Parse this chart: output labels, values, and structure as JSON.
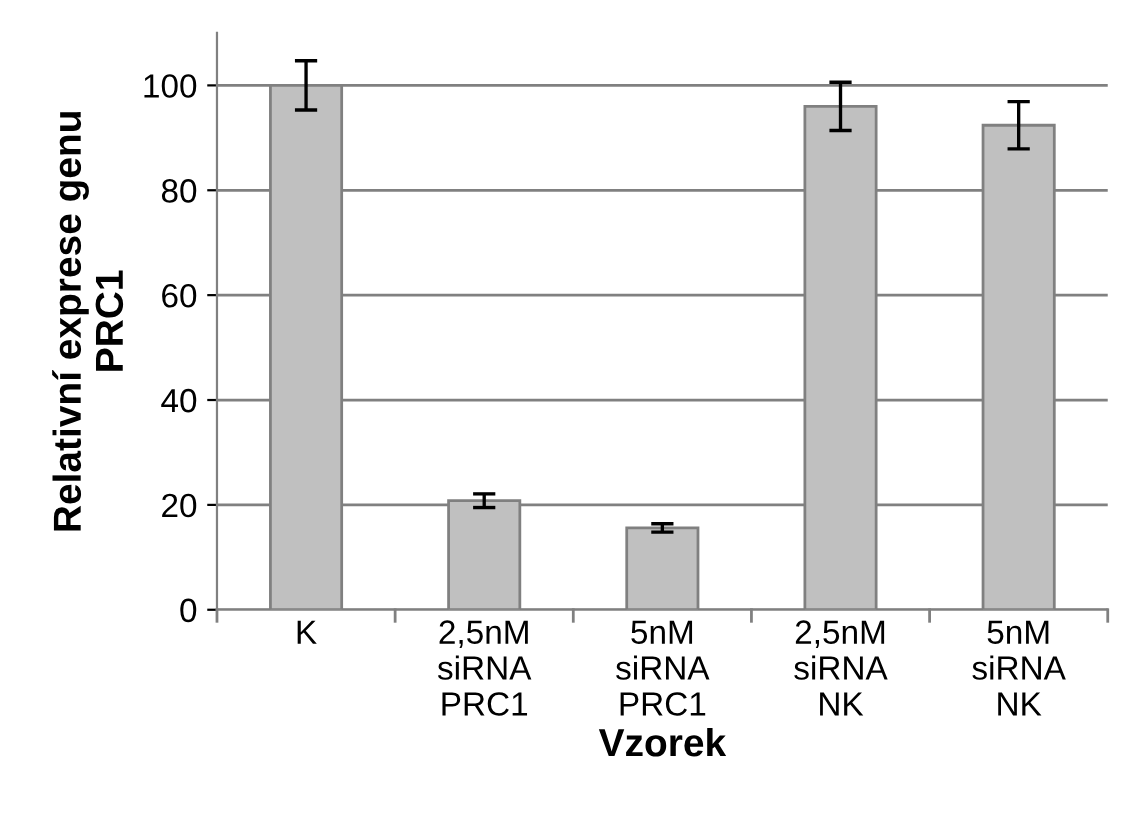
{
  "chart_data": {
    "type": "bar",
    "xlabel": "Vzorek",
    "ylabel": "Relativní exprese genu\nPRC1",
    "categories": [
      "K",
      "2,5nM\nsiRNA\nPRC1",
      "5nM\nsiRNA\nPRC1",
      "2,5nM\nsiRNA\nNK",
      "5nM\nsiRNA\nNK"
    ],
    "values": [
      100,
      20.8,
      15.6,
      96.0,
      92.4
    ],
    "errors": [
      4.7,
      1.3,
      0.8,
      4.6,
      4.5
    ],
    "color": "#c0c0c0",
    "ylim": [
      0,
      110
    ],
    "yticks": [
      0,
      20,
      40,
      60,
      80,
      100
    ],
    "grid": "y"
  }
}
